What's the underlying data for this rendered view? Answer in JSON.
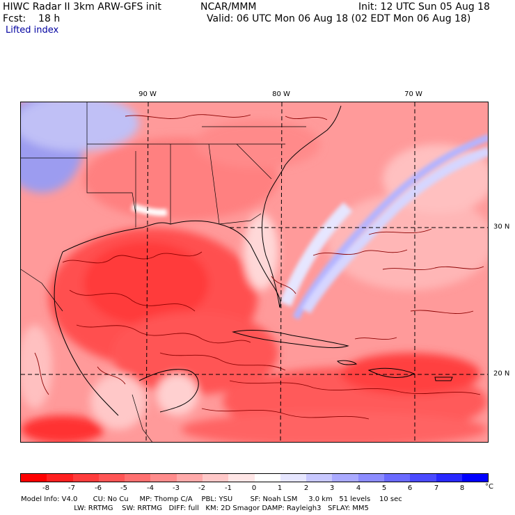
{
  "header": {
    "title": "HIWC Radar II 3km ARW-GFS init",
    "org": "NCAR/MMM",
    "init": "Init: 12 UTC Sun 05 Aug 18",
    "forecast": "Fcst:    18 h",
    "valid": "Valid: 06 UTC Mon 06 Aug 18 (02 EDT Mon 06 Aug 18)",
    "field": "Lifted index"
  },
  "map": {
    "lon_labels": [
      "90 W",
      "80 W",
      "70 W"
    ],
    "lat_labels": [
      "30 N",
      "20 N"
    ],
    "colors": {
      "grid_line": "#000000",
      "coast": "#000000",
      "contour": "#8b0000"
    }
  },
  "legend": {
    "tick_labels": [
      "-8",
      "-7",
      "-6",
      "-5",
      "-4",
      "-3",
      "-2",
      "-1",
      "0",
      "1",
      "2",
      "3",
      "4",
      "5",
      "6",
      "7",
      "8"
    ],
    "unit": "°C",
    "colors": [
      "#ff0000",
      "#ff2020",
      "#ff3c3c",
      "#ff5555",
      "#ff7070",
      "#ff8c8c",
      "#ffaaaa",
      "#ffc8c8",
      "#ffe6e6",
      "#ffffff",
      "#e6e6ff",
      "#c8c8ff",
      "#aaaaff",
      "#8c8cff",
      "#6a6aff",
      "#4a4aff",
      "#2828ff",
      "#0000ff"
    ]
  },
  "footer": {
    "line1": "Model Info: V4.0       CU: No Cu     MP: Thomp C/A    PBL: YSU        SF: Noah LSM     3.0 km   51 levels    10 sec",
    "line2": "                        LW: RRTMG    SW: RRTMG   DIFF: full   KM: 2D Smagor DAMP: Rayleigh3   SFLAY: MM5"
  }
}
